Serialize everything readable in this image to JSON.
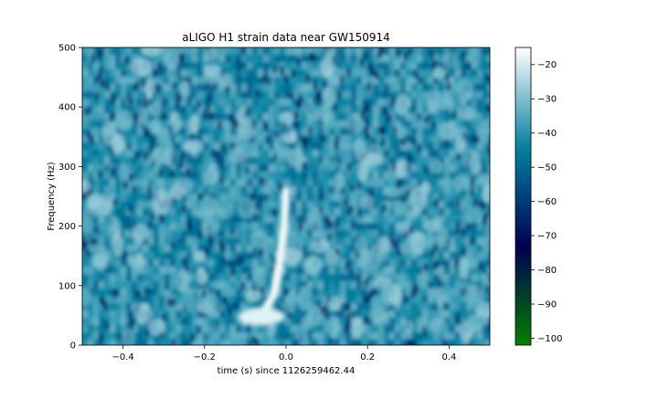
{
  "chart_data": {
    "type": "heatmap",
    "title": "aLIGO H1 strain data near GW150914",
    "xlabel": "time (s) since 1126259462.44",
    "ylabel": "Frequency (Hz)",
    "xlim": [
      -0.5,
      0.5
    ],
    "ylim": [
      0,
      500
    ],
    "x_ticks": [
      -0.4,
      -0.2,
      0.0,
      0.2,
      0.4
    ],
    "x_tick_labels": [
      "−0.4",
      "−0.2",
      "0.0",
      "0.2",
      "0.4"
    ],
    "y_ticks": [
      0,
      100,
      200,
      300,
      400,
      500
    ],
    "y_tick_labels": [
      "0",
      "100",
      "200",
      "300",
      "400",
      "500"
    ],
    "colormap": "ocean",
    "colorbar": {
      "range": [
        -102,
        -15
      ],
      "ticks": [
        -20,
        -30,
        -40,
        -50,
        -60,
        -70,
        -80,
        -90,
        -100
      ],
      "tick_labels": [
        "−20",
        "−30",
        "−40",
        "−50",
        "−60",
        "−70",
        "−80",
        "−90",
        "−100"
      ]
    },
    "chirp_track": {
      "description_values": "time (s), frequency (Hz) of bright chirp feature",
      "points": [
        [
          -0.1,
          40
        ],
        [
          -0.06,
          50
        ],
        [
          -0.03,
          85
        ],
        [
          -0.015,
          140
        ],
        [
          -0.005,
          200
        ],
        [
          0.0,
          260
        ]
      ]
    },
    "background_level_range": [
      -52,
      -32
    ]
  }
}
